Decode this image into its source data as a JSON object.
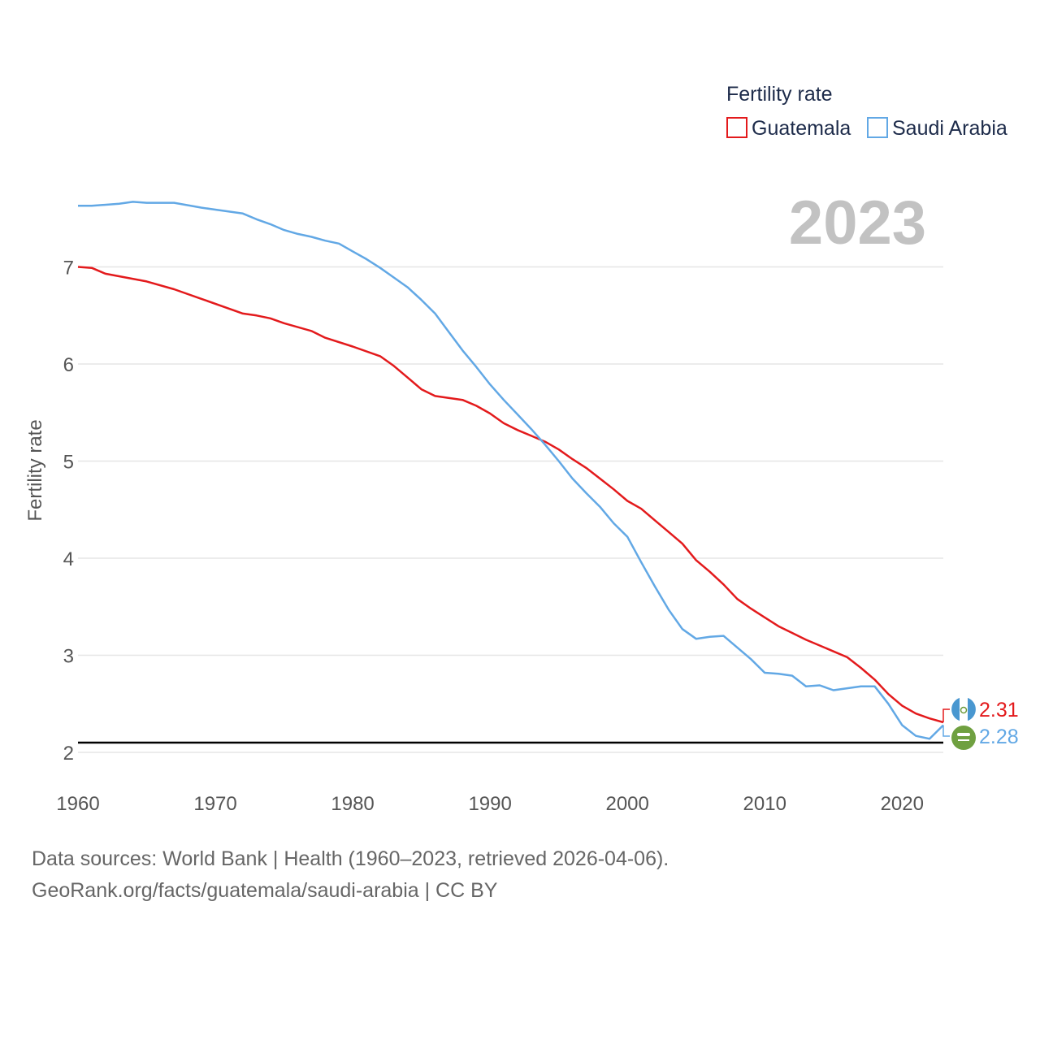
{
  "chart_data": {
    "type": "line",
    "title": "Fertility rate",
    "year_label": "2023",
    "xlabel": "",
    "ylabel": "Fertility rate",
    "xlim": [
      1960,
      2023
    ],
    "ylim": [
      2,
      7.8
    ],
    "x_ticks": [
      1960,
      1970,
      1980,
      1990,
      2000,
      2010,
      2020
    ],
    "y_ticks": [
      2,
      3,
      4,
      5,
      6,
      7
    ],
    "reference_line": 2.1,
    "series": [
      {
        "name": "Guatemala",
        "color": "#e31a1c",
        "end_label": "2.31",
        "points": [
          [
            1960,
            7.0
          ],
          [
            1961,
            6.99
          ],
          [
            1962,
            6.93
          ],
          [
            1965,
            6.85
          ],
          [
            1967,
            6.77
          ],
          [
            1969,
            6.67
          ],
          [
            1971,
            6.57
          ],
          [
            1972,
            6.52
          ],
          [
            1973,
            6.5
          ],
          [
            1974,
            6.47
          ],
          [
            1975,
            6.42
          ],
          [
            1977,
            6.34
          ],
          [
            1978,
            6.27
          ],
          [
            1980,
            6.18
          ],
          [
            1982,
            6.08
          ],
          [
            1983,
            5.98
          ],
          [
            1984,
            5.86
          ],
          [
            1985,
            5.74
          ],
          [
            1986,
            5.67
          ],
          [
            1988,
            5.63
          ],
          [
            1989,
            5.57
          ],
          [
            1990,
            5.49
          ],
          [
            1991,
            5.39
          ],
          [
            1992,
            5.32
          ],
          [
            1993,
            5.26
          ],
          [
            1994,
            5.2
          ],
          [
            1995,
            5.12
          ],
          [
            1996,
            5.02
          ],
          [
            1997,
            4.93
          ],
          [
            1998,
            4.82
          ],
          [
            1999,
            4.71
          ],
          [
            2000,
            4.59
          ],
          [
            2001,
            4.51
          ],
          [
            2002,
            4.39
          ],
          [
            2003,
            4.27
          ],
          [
            2004,
            4.15
          ],
          [
            2005,
            3.98
          ],
          [
            2006,
            3.86
          ],
          [
            2007,
            3.73
          ],
          [
            2008,
            3.58
          ],
          [
            2009,
            3.48
          ],
          [
            2010,
            3.39
          ],
          [
            2011,
            3.3
          ],
          [
            2012,
            3.23
          ],
          [
            2013,
            3.16
          ],
          [
            2014,
            3.1
          ],
          [
            2015,
            3.04
          ],
          [
            2016,
            2.98
          ],
          [
            2017,
            2.87
          ],
          [
            2018,
            2.75
          ],
          [
            2019,
            2.6
          ],
          [
            2020,
            2.48
          ],
          [
            2021,
            2.4
          ],
          [
            2022,
            2.35
          ],
          [
            2023,
            2.31
          ]
        ]
      },
      {
        "name": "Saudi Arabia",
        "color": "#62a8e5",
        "end_label": "2.28",
        "points": [
          [
            1960,
            7.63
          ],
          [
            1961,
            7.63
          ],
          [
            1963,
            7.65
          ],
          [
            1964,
            7.67
          ],
          [
            1965,
            7.66
          ],
          [
            1967,
            7.66
          ],
          [
            1969,
            7.61
          ],
          [
            1970,
            7.59
          ],
          [
            1972,
            7.55
          ],
          [
            1973,
            7.49
          ],
          [
            1974,
            7.44
          ],
          [
            1975,
            7.38
          ],
          [
            1976,
            7.34
          ],
          [
            1977,
            7.31
          ],
          [
            1978,
            7.27
          ],
          [
            1979,
            7.24
          ],
          [
            1980,
            7.16
          ],
          [
            1981,
            7.08
          ],
          [
            1982,
            6.99
          ],
          [
            1983,
            6.89
          ],
          [
            1984,
            6.79
          ],
          [
            1985,
            6.66
          ],
          [
            1986,
            6.52
          ],
          [
            1987,
            6.33
          ],
          [
            1988,
            6.14
          ],
          [
            1989,
            5.97
          ],
          [
            1990,
            5.79
          ],
          [
            1991,
            5.63
          ],
          [
            1992,
            5.48
          ],
          [
            1993,
            5.33
          ],
          [
            1994,
            5.17
          ],
          [
            1995,
            5.0
          ],
          [
            1996,
            4.82
          ],
          [
            1997,
            4.67
          ],
          [
            1998,
            4.53
          ],
          [
            1999,
            4.36
          ],
          [
            2000,
            4.22
          ],
          [
            2001,
            3.96
          ],
          [
            2002,
            3.71
          ],
          [
            2003,
            3.47
          ],
          [
            2004,
            3.27
          ],
          [
            2005,
            3.17
          ],
          [
            2006,
            3.19
          ],
          [
            2007,
            3.2
          ],
          [
            2008,
            3.08
          ],
          [
            2009,
            2.96
          ],
          [
            2010,
            2.82
          ],
          [
            2011,
            2.81
          ],
          [
            2012,
            2.79
          ],
          [
            2013,
            2.68
          ],
          [
            2014,
            2.69
          ],
          [
            2015,
            2.64
          ],
          [
            2016,
            2.66
          ],
          [
            2017,
            2.68
          ],
          [
            2018,
            2.68
          ],
          [
            2019,
            2.5
          ],
          [
            2020,
            2.28
          ],
          [
            2021,
            2.17
          ],
          [
            2022,
            2.14
          ],
          [
            2023,
            2.28
          ]
        ]
      }
    ]
  },
  "footer": {
    "line1": "Data sources: World Bank | Health (1960–2023, retrieved 2026-04-06).",
    "line2": "GeoRank.org/facts/guatemala/saudi-arabia | CC BY"
  },
  "icons": [
    "guatemala-flag-icon",
    "saudi-arabia-flag-icon"
  ]
}
